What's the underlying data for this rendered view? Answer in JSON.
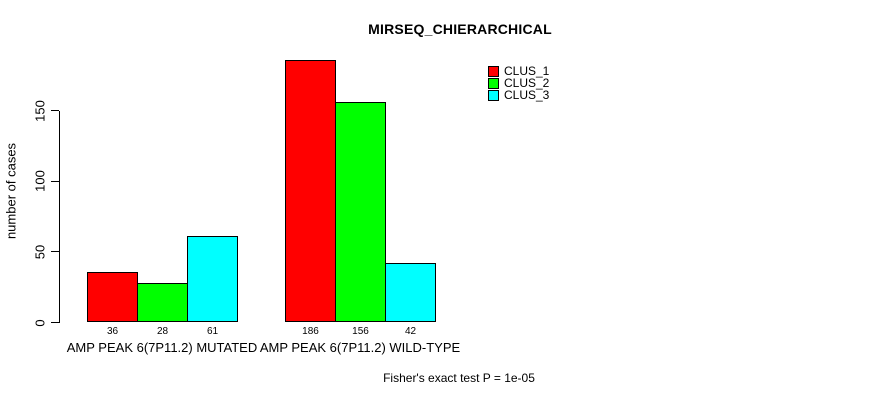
{
  "title": "MIRSEQ_CHIERARCHICAL",
  "y_axis": {
    "label": "number of cases",
    "tick_labels": [
      "0",
      "50",
      "100",
      "150"
    ]
  },
  "legend": {
    "items": [
      {
        "label": "CLUS_1",
        "color": "#ff0000"
      },
      {
        "label": "CLUS_2",
        "color": "#00ff00"
      },
      {
        "label": "CLUS_3",
        "color": "#00ffff"
      }
    ]
  },
  "caption": "Fisher's exact test P = 1e-05",
  "chart_data": {
    "type": "bar",
    "title": "MIRSEQ_CHIERARCHICAL",
    "categories": [
      "AMP PEAK 6(7P11.2) MUTATED",
      "AMP PEAK 6(7P11.2) WILD-TYPE"
    ],
    "series": [
      {
        "name": "CLUS_1",
        "color": "#ff0000",
        "values": [
          36,
          186
        ]
      },
      {
        "name": "CLUS_2",
        "color": "#00ff00",
        "values": [
          28,
          156
        ]
      },
      {
        "name": "CLUS_3",
        "color": "#00ffff",
        "values": [
          61,
          42
        ]
      }
    ],
    "bar_value_labels": [
      [
        36,
        28,
        61
      ],
      [
        186,
        156,
        42
      ]
    ],
    "xlabel": "",
    "ylabel": "number of cases",
    "y_ticks": [
      0,
      50,
      100,
      150
    ],
    "ylim": [
      0,
      190
    ],
    "grid": false,
    "legend_position": "top-right",
    "annotation": "Fisher's exact test P = 1e-05",
    "bar_border_color": "#000000",
    "background_color": "#ffffff"
  }
}
